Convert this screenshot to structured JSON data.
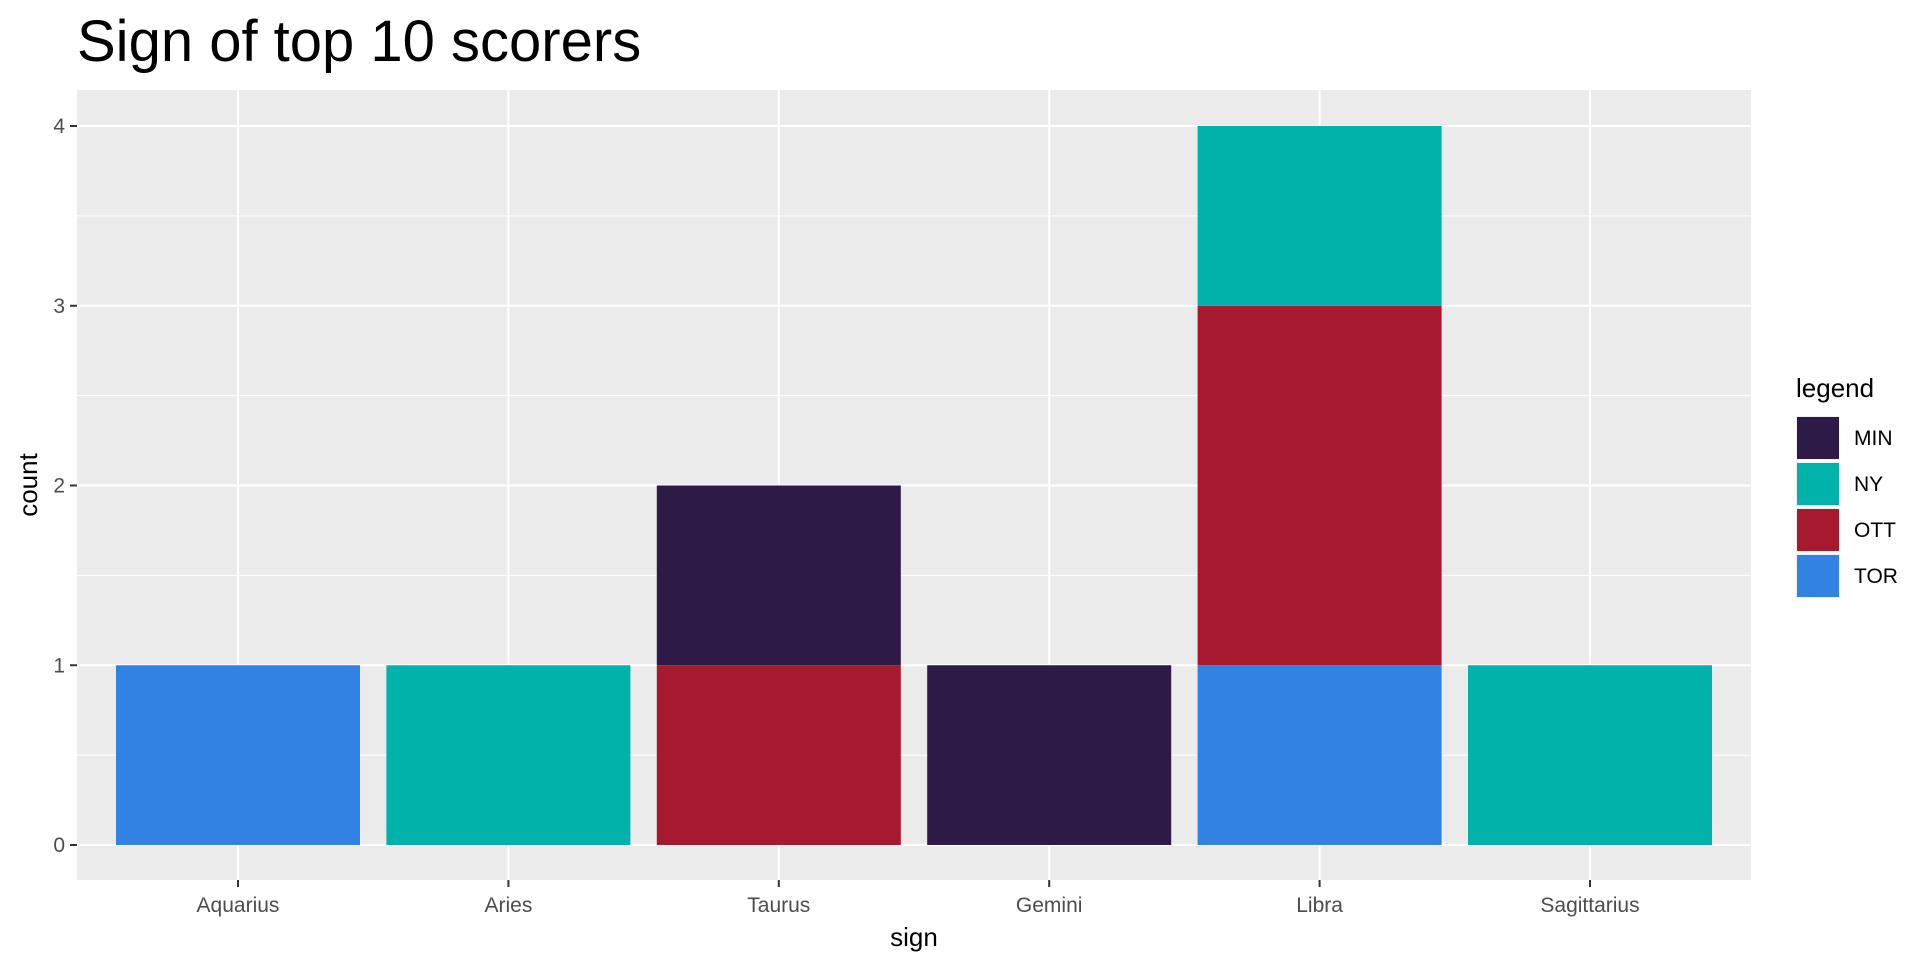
{
  "chart_data": {
    "type": "bar",
    "stacked": true,
    "title": "Sign of top 10 scorers",
    "xlabel": "sign",
    "ylabel": "count",
    "categories": [
      "Aquarius",
      "Aries",
      "Taurus",
      "Gemini",
      "Libra",
      "Sagittarius"
    ],
    "ylim": [
      0,
      4
    ],
    "yticks": [
      0,
      1,
      2,
      3,
      4
    ],
    "grid": true,
    "legend": {
      "title": "legend",
      "position": "right"
    },
    "stack_order": [
      "TOR",
      "OTT",
      "NY",
      "MIN"
    ],
    "series": [
      {
        "name": "MIN",
        "color": "#2e1a47",
        "values": [
          0,
          0,
          1,
          1,
          0,
          0
        ]
      },
      {
        "name": "NY",
        "color": "#00b2a9",
        "values": [
          0,
          1,
          0,
          0,
          1,
          1
        ]
      },
      {
        "name": "OTT",
        "color": "#a6192e",
        "values": [
          0,
          0,
          1,
          0,
          2,
          0
        ]
      },
      {
        "name": "TOR",
        "color": "#3182e2",
        "values": [
          1,
          0,
          0,
          0,
          1,
          0
        ]
      }
    ],
    "panel_background": "#ebebeb",
    "grid_color": "#ffffff"
  }
}
